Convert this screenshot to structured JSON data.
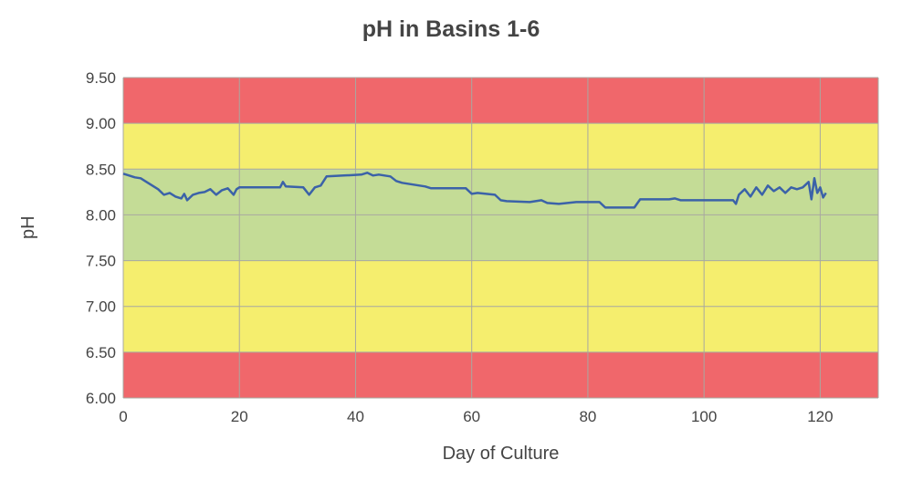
{
  "chart_data": {
    "type": "line",
    "title": "pH in Basins 1-6",
    "xlabel": "Day of Culture",
    "ylabel": "pH",
    "xlim": [
      0,
      130
    ],
    "ylim": [
      6.0,
      9.5
    ],
    "xticks": [
      0,
      20,
      40,
      60,
      80,
      100,
      120
    ],
    "yticks": [
      "6.00",
      "6.50",
      "7.00",
      "7.50",
      "8.00",
      "8.50",
      "9.00",
      "9.50"
    ],
    "grid": true,
    "bands": [
      {
        "from": 9.0,
        "to": 9.5,
        "color": "#F0676B"
      },
      {
        "from": 8.5,
        "to": 9.0,
        "color": "#F5EE6E"
      },
      {
        "from": 7.5,
        "to": 8.5,
        "color": "#C4DC96"
      },
      {
        "from": 6.5,
        "to": 7.5,
        "color": "#F5EE6E"
      },
      {
        "from": 6.0,
        "to": 6.5,
        "color": "#F0676B"
      }
    ],
    "series": [
      {
        "name": "pH",
        "color": "#3B62A8",
        "x": [
          0,
          1,
          2,
          3,
          4,
          5,
          6,
          7,
          8,
          9,
          10,
          10.5,
          11,
          12,
          13,
          14,
          15,
          16,
          17,
          18,
          19,
          19.5,
          20,
          27,
          27.5,
          28,
          31,
          32,
          33,
          34,
          35,
          38,
          41,
          42,
          43,
          44,
          46,
          47,
          48,
          50,
          52,
          53,
          59,
          60,
          61,
          64,
          65,
          66,
          70,
          72,
          73,
          75,
          78,
          82,
          83,
          88,
          89,
          94,
          95,
          96,
          105,
          105.5,
          106,
          107,
          108,
          109,
          110,
          111,
          112,
          113,
          114,
          115,
          116,
          117,
          118,
          118.5,
          119,
          119.5,
          120,
          120.5,
          121
        ],
        "y": [
          8.45,
          8.43,
          8.41,
          8.4,
          8.36,
          8.32,
          8.28,
          8.22,
          8.24,
          8.2,
          8.18,
          8.23,
          8.16,
          8.22,
          8.24,
          8.25,
          8.28,
          8.22,
          8.27,
          8.29,
          8.22,
          8.28,
          8.3,
          8.3,
          8.36,
          8.31,
          8.3,
          8.22,
          8.3,
          8.32,
          8.42,
          8.43,
          8.44,
          8.46,
          8.43,
          8.44,
          8.42,
          8.37,
          8.35,
          8.33,
          8.31,
          8.29,
          8.29,
          8.23,
          8.24,
          8.22,
          8.16,
          8.15,
          8.14,
          8.16,
          8.13,
          8.12,
          8.14,
          8.14,
          8.08,
          8.08,
          8.17,
          8.17,
          8.18,
          8.16,
          8.16,
          8.12,
          8.22,
          8.28,
          8.2,
          8.3,
          8.22,
          8.32,
          8.26,
          8.3,
          8.24,
          8.3,
          8.28,
          8.3,
          8.36,
          8.17,
          8.4,
          8.24,
          8.3,
          8.19,
          8.24
        ]
      }
    ]
  }
}
